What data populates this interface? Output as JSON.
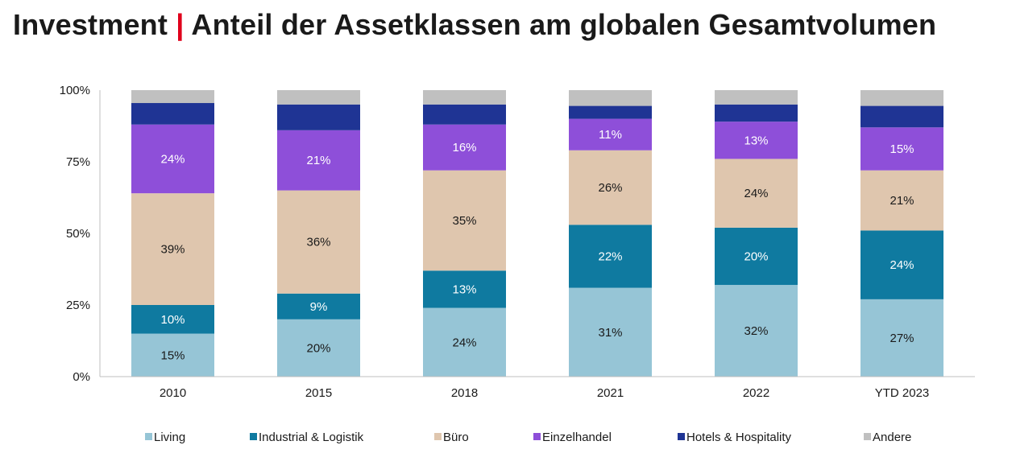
{
  "title": {
    "main": "Investment",
    "separator": "|",
    "sub": "Anteil der Assetklassen am globalen Gesamtvolumen",
    "separator_color": "#e0001b"
  },
  "chart_data": {
    "type": "bar",
    "stacked": true,
    "normalized": true,
    "categories": [
      "2010",
      "2015",
      "2018",
      "2021",
      "2022",
      "YTD 2023"
    ],
    "ylim": [
      0,
      100
    ],
    "yticks": [
      "0%",
      "25%",
      "50%",
      "75%",
      "100%"
    ],
    "ytick_values": [
      0,
      25,
      50,
      75,
      100
    ],
    "grid": false,
    "legend_position": "bottom",
    "series": [
      {
        "name": "Living",
        "color": "#96c5d6",
        "values": [
          15,
          20,
          24,
          31,
          32,
          27
        ],
        "labels": [
          "15%",
          "20%",
          "24%",
          "31%",
          "32%",
          "27%"
        ],
        "label_color": "#1a1a1a"
      },
      {
        "name": "Industrial & Logistik",
        "color": "#0f7aa0",
        "values": [
          10,
          9,
          13,
          22,
          20,
          24
        ],
        "labels": [
          "10%",
          "9%",
          "13%",
          "22%",
          "20%",
          "24%"
        ],
        "label_color": "#ffffff"
      },
      {
        "name": "Büro",
        "color": "#dfc6ae",
        "values": [
          39,
          36,
          35,
          26,
          24,
          21
        ],
        "labels": [
          "39%",
          "36%",
          "35%",
          "26%",
          "24%",
          "21%"
        ],
        "label_color": "#1a1a1a"
      },
      {
        "name": "Einzelhandel",
        "color": "#8e4fd9",
        "values": [
          24,
          21,
          16,
          11,
          13,
          15
        ],
        "labels": [
          "24%",
          "21%",
          "16%",
          "11%",
          "13%",
          "15%"
        ],
        "label_color": "#ffffff"
      },
      {
        "name": "Hotels & Hospitality",
        "color": "#1f3494",
        "values": [
          7.5,
          9,
          7,
          4.5,
          6,
          7.5
        ],
        "labels": null,
        "label_color": "#ffffff"
      },
      {
        "name": "Andere",
        "color": "#c0c0c0",
        "values": [
          4.5,
          5,
          5,
          5.5,
          5,
          5.5
        ],
        "labels": null,
        "label_color": "#1a1a1a"
      }
    ]
  }
}
